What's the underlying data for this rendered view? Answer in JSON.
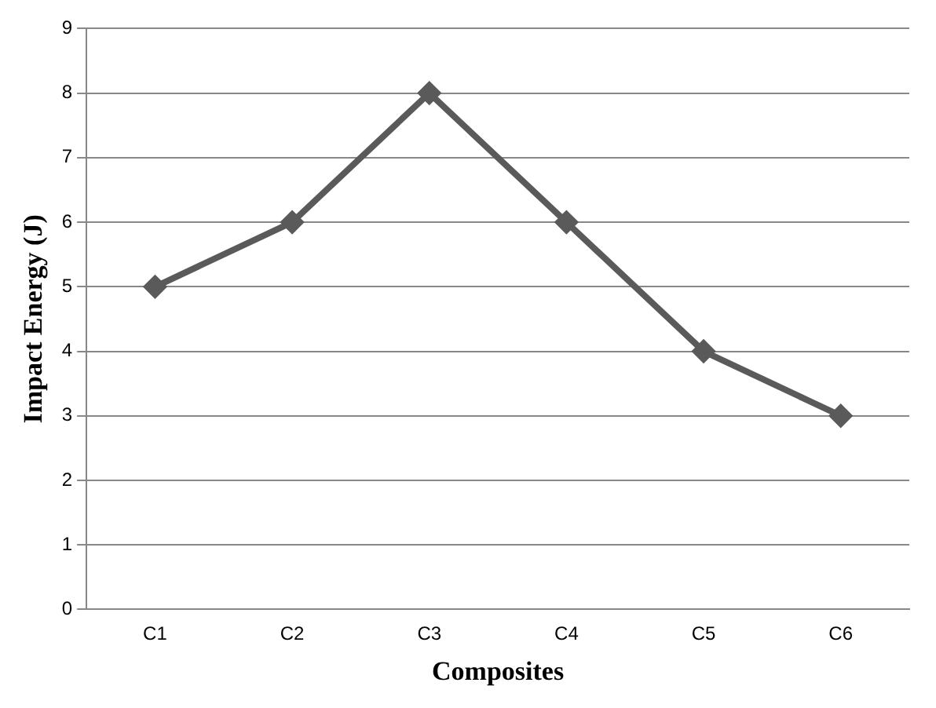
{
  "chart_data": {
    "type": "line",
    "xlabel": "Composites",
    "ylabel": "Impact Energy (J)",
    "categories": [
      "C1",
      "C2",
      "C3",
      "C4",
      "C5",
      "C6"
    ],
    "series": [
      {
        "color": "#5a5a5a",
        "values": [
          5,
          6,
          8,
          6,
          4,
          3
        ]
      }
    ],
    "ylim": [
      0,
      9
    ],
    "yticks": [
      0,
      1,
      2,
      3,
      4,
      5,
      6,
      7,
      8,
      9
    ],
    "grid": "y",
    "legend": false,
    "marker": "diamond",
    "line_style": "solid"
  }
}
